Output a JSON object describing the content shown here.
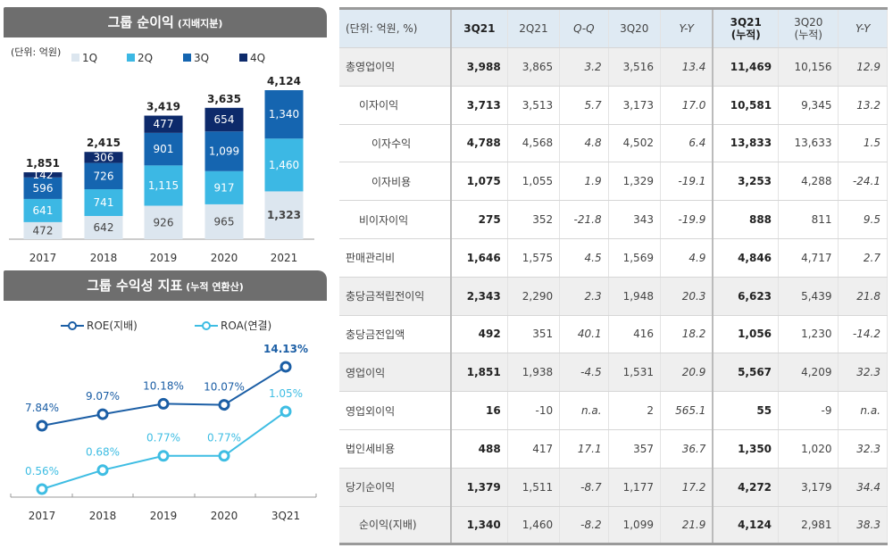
{
  "chart_data": [
    {
      "type": "bar",
      "stacked": true,
      "title": "그룹 순이익",
      "subtitle": "(지배지분)",
      "unit_note": "(단위: 억원)",
      "legend_position": "top",
      "categories": [
        "2017",
        "2018",
        "2019",
        "2020",
        "2021"
      ],
      "series": [
        {
          "name": "1Q",
          "color": "#dce6ef",
          "values": [
            472,
            642,
            926,
            965,
            1323
          ]
        },
        {
          "name": "2Q",
          "color": "#3cb8e4",
          "values": [
            641,
            741,
            1115,
            917,
            1460
          ]
        },
        {
          "name": "3Q",
          "color": "#1565b0",
          "values": [
            596,
            726,
            901,
            1099,
            1340
          ]
        },
        {
          "name": "4Q",
          "color": "#0d2a6b",
          "values": [
            142,
            306,
            477,
            654,
            null
          ]
        }
      ],
      "totals": [
        "1,851",
        "2,415",
        "3,419",
        "3,635",
        "4,124"
      ],
      "labels": [
        [
          "472",
          "641",
          "596",
          "142"
        ],
        [
          "642",
          "741",
          "726",
          "306"
        ],
        [
          "926",
          "1,115",
          "901",
          "477"
        ],
        [
          "965",
          "917",
          "1,099",
          "654"
        ],
        [
          "1,323",
          "1,460",
          "1,340",
          ""
        ]
      ]
    },
    {
      "type": "line",
      "title": "그룹 수익성 지표",
      "subtitle": "(누적 연환산)",
      "legend_position": "top",
      "categories": [
        "2017",
        "2018",
        "2019",
        "2020",
        "3Q21"
      ],
      "series": [
        {
          "name": "ROE(지배)",
          "color": "#1b5ea5",
          "values": [
            7.84,
            9.07,
            10.18,
            10.07,
            14.13
          ],
          "labels": [
            "7.84%",
            "9.07%",
            "10.18%",
            "10.07%",
            "14.13%"
          ]
        },
        {
          "name": "ROA(연결)",
          "color": "#3ebde3",
          "values": [
            0.56,
            0.68,
            0.77,
            0.77,
            1.05
          ],
          "labels": [
            "0.56%",
            "0.68%",
            "0.77%",
            "0.77%",
            "1.05%"
          ]
        }
      ]
    }
  ],
  "table": {
    "headers": [
      "(단위: 억원, %)",
      "3Q21",
      "2Q21",
      "Q-Q",
      "3Q20",
      "Y-Y",
      "3Q21\n(누적)",
      "3Q20\n(누적)",
      "Y-Y"
    ],
    "rows": [
      {
        "label": "총영업이익",
        "indent": 0,
        "shaded": true,
        "cells": [
          "3,988",
          "3,865",
          "3.2",
          "3,516",
          "13.4",
          "11,469",
          "10,156",
          "12.9"
        ]
      },
      {
        "label": "이자이익",
        "indent": 1,
        "shaded": false,
        "cells": [
          "3,713",
          "3,513",
          "5.7",
          "3,173",
          "17.0",
          "10,581",
          "9,345",
          "13.2"
        ]
      },
      {
        "label": "이자수익",
        "indent": 2,
        "shaded": false,
        "cells": [
          "4,788",
          "4,568",
          "4.8",
          "4,502",
          "6.4",
          "13,833",
          "13,633",
          "1.5"
        ]
      },
      {
        "label": "이자비용",
        "indent": 2,
        "shaded": false,
        "cells": [
          "1,075",
          "1,055",
          "1.9",
          "1,329",
          "-19.1",
          "3,253",
          "4,288",
          "-24.1"
        ]
      },
      {
        "label": "비이자이익",
        "indent": 1,
        "shaded": false,
        "cells": [
          "275",
          "352",
          "-21.8",
          "343",
          "-19.9",
          "888",
          "811",
          "9.5"
        ]
      },
      {
        "label": "판매관리비",
        "indent": 0,
        "shaded": false,
        "cells": [
          "1,646",
          "1,575",
          "4.5",
          "1,569",
          "4.9",
          "4,846",
          "4,717",
          "2.7"
        ]
      },
      {
        "label": "충당금적립전이익",
        "indent": 0,
        "shaded": true,
        "cells": [
          "2,343",
          "2,290",
          "2.3",
          "1,948",
          "20.3",
          "6,623",
          "5,439",
          "21.8"
        ]
      },
      {
        "label": "충당금전입액",
        "indent": 0,
        "shaded": false,
        "cells": [
          "492",
          "351",
          "40.1",
          "416",
          "18.2",
          "1,056",
          "1,230",
          "-14.2"
        ]
      },
      {
        "label": "영업이익",
        "indent": 0,
        "shaded": true,
        "cells": [
          "1,851",
          "1,938",
          "-4.5",
          "1,531",
          "20.9",
          "5,567",
          "4,209",
          "32.3"
        ]
      },
      {
        "label": "영업외이익",
        "indent": 0,
        "shaded": false,
        "cells": [
          "16",
          "-10",
          "n.a.",
          "2",
          "565.1",
          "55",
          "-9",
          "n.a."
        ]
      },
      {
        "label": "법인세비용",
        "indent": 0,
        "shaded": false,
        "cells": [
          "488",
          "417",
          "17.1",
          "357",
          "36.7",
          "1,350",
          "1,020",
          "32.3"
        ]
      },
      {
        "label": "당기순이익",
        "indent": 0,
        "shaded": true,
        "cells": [
          "1,379",
          "1,511",
          "-8.7",
          "1,177",
          "17.2",
          "4,272",
          "3,179",
          "34.4"
        ]
      },
      {
        "label": "순이익(지배)",
        "indent": 1,
        "shaded": true,
        "cells": [
          "1,340",
          "1,460",
          "-8.2",
          "1,099",
          "21.9",
          "4,124",
          "2,981",
          "38.3"
        ]
      }
    ]
  }
}
